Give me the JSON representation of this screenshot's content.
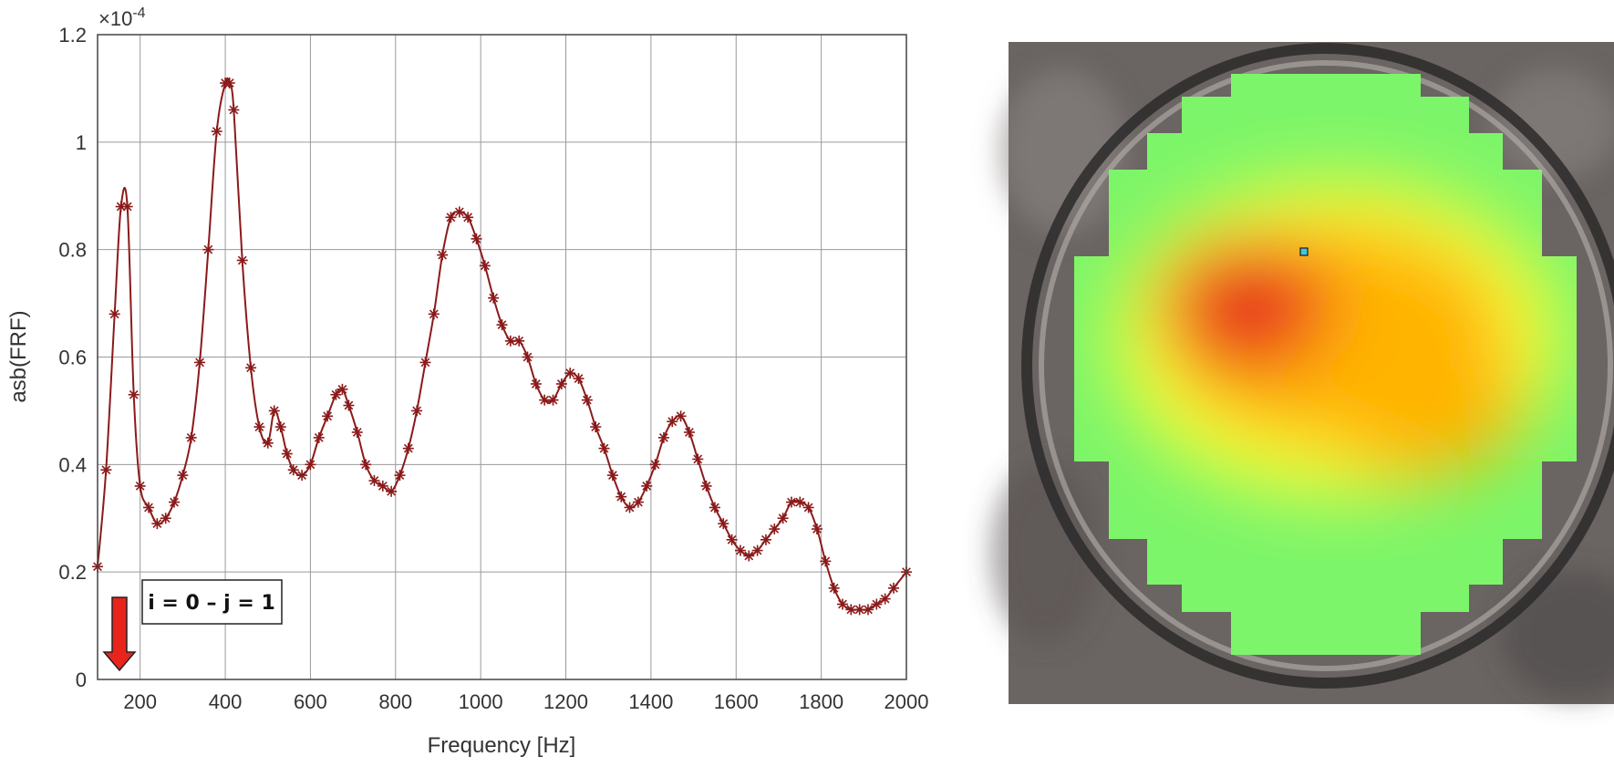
{
  "chart_data": {
    "type": "line",
    "title": "",
    "xlabel": "Frequency [Hz]",
    "ylabel": "asb(FRF)",
    "y_exponent_label": "×10",
    "y_exponent_power": "-4",
    "xlim": [
      100,
      2000
    ],
    "ylim": [
      0,
      1.2
    ],
    "x_ticks": [
      200,
      400,
      600,
      800,
      1000,
      1200,
      1400,
      1600,
      1800,
      2000
    ],
    "x_tick_labels": [
      "200",
      "400",
      "600",
      "800",
      "1000",
      "1200",
      "1400",
      "1600",
      "1800",
      "2000"
    ],
    "y_ticks": [
      0,
      0.2,
      0.4,
      0.6,
      0.8,
      1,
      1.2
    ],
    "y_tick_labels": [
      "0",
      "0.2",
      "0.4",
      "0.6",
      "0.8",
      "1",
      "1.2"
    ],
    "grid": true,
    "line_color": "#8b1a1a",
    "marker": "asterisk",
    "annotation": "i = 0 – j = 1",
    "arrow_color": "#e8241c",
    "series": [
      {
        "x": [
          100,
          120,
          140,
          155,
          170,
          185,
          200,
          220,
          240,
          260,
          280,
          300,
          320,
          340,
          360,
          380,
          400,
          410,
          420,
          440,
          460,
          480,
          500,
          515,
          530,
          545,
          560,
          580,
          600,
          620,
          640,
          660,
          675,
          690,
          710,
          730,
          750,
          770,
          790,
          810,
          830,
          850,
          870,
          890,
          910,
          930,
          950,
          970,
          990,
          1010,
          1030,
          1050,
          1070,
          1090,
          1110,
          1130,
          1150,
          1170,
          1190,
          1210,
          1230,
          1250,
          1270,
          1290,
          1310,
          1330,
          1350,
          1370,
          1390,
          1410,
          1430,
          1450,
          1470,
          1490,
          1510,
          1530,
          1550,
          1570,
          1590,
          1610,
          1630,
          1650,
          1670,
          1690,
          1710,
          1730,
          1750,
          1770,
          1790,
          1810,
          1830,
          1850,
          1870,
          1890,
          1910,
          1930,
          1950,
          1970,
          2000
        ],
        "y": [
          0.21,
          0.39,
          0.68,
          0.88,
          0.88,
          0.53,
          0.36,
          0.32,
          0.29,
          0.3,
          0.33,
          0.38,
          0.45,
          0.59,
          0.8,
          1.02,
          1.11,
          1.11,
          1.06,
          0.78,
          0.58,
          0.47,
          0.44,
          0.5,
          0.47,
          0.42,
          0.39,
          0.38,
          0.4,
          0.45,
          0.49,
          0.53,
          0.54,
          0.51,
          0.46,
          0.4,
          0.37,
          0.36,
          0.35,
          0.38,
          0.43,
          0.5,
          0.59,
          0.68,
          0.79,
          0.86,
          0.87,
          0.86,
          0.82,
          0.77,
          0.71,
          0.66,
          0.63,
          0.63,
          0.6,
          0.55,
          0.52,
          0.52,
          0.55,
          0.57,
          0.56,
          0.52,
          0.47,
          0.43,
          0.38,
          0.34,
          0.32,
          0.33,
          0.36,
          0.4,
          0.45,
          0.48,
          0.49,
          0.46,
          0.41,
          0.36,
          0.32,
          0.29,
          0.26,
          0.24,
          0.23,
          0.24,
          0.26,
          0.28,
          0.3,
          0.33,
          0.33,
          0.32,
          0.28,
          0.22,
          0.17,
          0.14,
          0.13,
          0.13,
          0.13,
          0.14,
          0.15,
          0.17,
          0.2
        ]
      }
    ]
  },
  "heatmap": {
    "background_color": "#6a6462",
    "rim_color": "#2b2a2a",
    "hot_color": "#e0141a",
    "mid_color": "#ffb400",
    "warm_color": "#f5ff3a",
    "cool_color": "#7cf56a",
    "marker_color": "#3ec7e0"
  }
}
